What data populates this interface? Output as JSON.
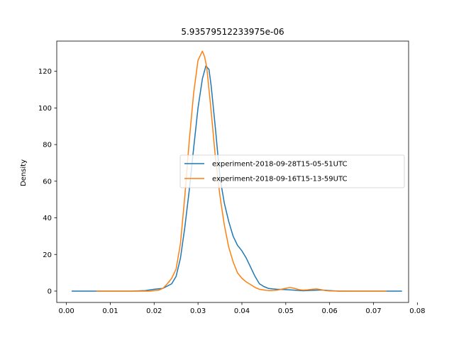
{
  "chart_data": {
    "type": "line",
    "title": "5.93579512233975e-06",
    "xlabel": "",
    "ylabel": "Density",
    "xlim": [
      -0.0022,
      0.078
    ],
    "ylim": [
      -6.2,
      136.5
    ],
    "xticks": [
      0.0,
      0.01,
      0.02,
      0.03,
      0.04,
      0.05,
      0.06,
      0.07,
      0.08
    ],
    "xtick_labels": [
      "0.00",
      "0.01",
      "0.02",
      "0.03",
      "0.04",
      "0.05",
      "0.06",
      "0.07",
      "0.08"
    ],
    "yticks": [
      0,
      20,
      40,
      60,
      80,
      100,
      120
    ],
    "ytick_labels": [
      "0",
      "20",
      "40",
      "60",
      "80",
      "100",
      "120"
    ],
    "grid": false,
    "legend_position": "center-right",
    "series": [
      {
        "name": "experiment-2018-09-28T15-05-51UTC",
        "color": "#1f77b4",
        "x": [
          0.0012,
          0.01,
          0.015,
          0.018,
          0.02,
          0.022,
          0.024,
          0.025,
          0.026,
          0.027,
          0.028,
          0.029,
          0.03,
          0.031,
          0.0318,
          0.0325,
          0.033,
          0.034,
          0.035,
          0.036,
          0.037,
          0.038,
          0.039,
          0.04,
          0.041,
          0.042,
          0.043,
          0.044,
          0.045,
          0.046,
          0.047,
          0.048,
          0.05,
          0.052,
          0.054,
          0.056,
          0.058,
          0.06,
          0.062,
          0.066,
          0.07,
          0.0765
        ],
        "y": [
          0,
          0,
          0,
          0.3,
          1,
          1.5,
          4,
          8,
          18,
          35,
          55,
          78,
          100,
          116,
          123,
          121,
          112,
          88,
          62,
          48,
          38,
          30,
          25,
          22,
          18,
          13,
          8,
          4,
          2.5,
          1.5,
          1.2,
          1,
          0.8,
          0.5,
          0.2,
          0.4,
          0.6,
          0.3,
          0,
          0,
          0,
          0
        ]
      },
      {
        "name": "experiment-2018-09-16T15-13-59UTC",
        "color": "#ff7f0e",
        "x": [
          0.0068,
          0.012,
          0.016,
          0.019,
          0.021,
          0.022,
          0.023,
          0.024,
          0.025,
          0.026,
          0.027,
          0.028,
          0.029,
          0.03,
          0.031,
          0.0315,
          0.032,
          0.033,
          0.034,
          0.035,
          0.036,
          0.037,
          0.038,
          0.039,
          0.04,
          0.041,
          0.042,
          0.043,
          0.044,
          0.045,
          0.046,
          0.047,
          0.048,
          0.049,
          0.05,
          0.051,
          0.052,
          0.053,
          0.054,
          0.055,
          0.056,
          0.057,
          0.058,
          0.059,
          0.06,
          0.064,
          0.068,
          0.073
        ],
        "y": [
          0,
          0,
          0,
          0,
          0.5,
          1.5,
          4,
          7,
          12,
          26,
          52,
          82,
          108,
          126,
          131,
          128,
          122,
          98,
          72,
          52,
          36,
          24,
          16,
          10,
          7,
          5,
          3.5,
          2,
          1,
          0.6,
          0.3,
          0.3,
          0.5,
          1,
          1.5,
          2,
          1.5,
          0.8,
          0.5,
          0.7,
          1,
          1.2,
          0.8,
          0.3,
          0.1,
          0,
          0,
          0
        ]
      }
    ]
  }
}
